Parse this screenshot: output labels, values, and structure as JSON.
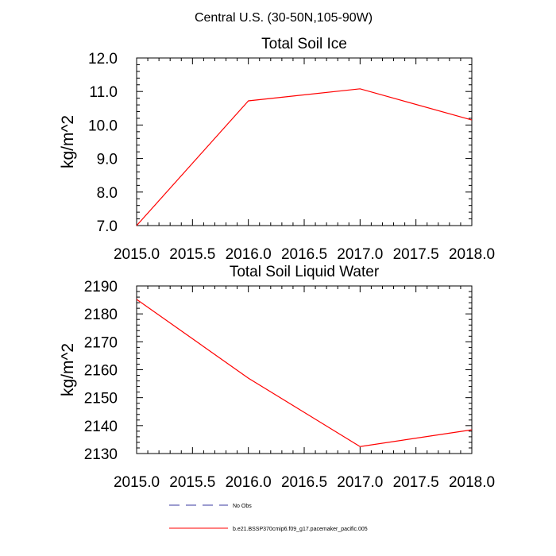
{
  "figure": {
    "title": "Central U.S. (30-50N,105-90W)"
  },
  "chart_data": [
    {
      "type": "line",
      "title": "Total Soil Ice",
      "xlabel": "",
      "ylabel": "kg/m^2",
      "xlim": [
        2015.0,
        2018.0
      ],
      "ylim": [
        7.0,
        12.0
      ],
      "xticks": [
        "2015.0",
        "2015.5",
        "2016.0",
        "2016.5",
        "2017.0",
        "2017.5",
        "2018.0"
      ],
      "yticks": [
        "7.0",
        "8.0",
        "9.0",
        "10.0",
        "11.0",
        "12.0"
      ],
      "grid": false,
      "series": [
        {
          "name": "b.e21.BSSP370cmip6.f09_g17.pacemaker_pacific.005",
          "color": "#ff0000",
          "x": [
            2015.0,
            2016.0,
            2017.0,
            2018.0
          ],
          "y": [
            7.0,
            10.72,
            11.08,
            10.15
          ]
        }
      ]
    },
    {
      "type": "line",
      "title": "Total Soil Liquid Water",
      "xlabel": "",
      "ylabel": "kg/m^2",
      "xlim": [
        2015.0,
        2018.0
      ],
      "ylim": [
        2130,
        2190
      ],
      "xticks": [
        "2015.0",
        "2015.5",
        "2016.0",
        "2016.5",
        "2017.0",
        "2017.5",
        "2018.0"
      ],
      "yticks": [
        "2130",
        "2140",
        "2150",
        "2160",
        "2170",
        "2180",
        "2190"
      ],
      "grid": false,
      "series": [
        {
          "name": "b.e21.BSSP370cmip6.f09_g17.pacemaker_pacific.005",
          "color": "#ff0000",
          "x": [
            2015.0,
            2016.0,
            2017.0,
            2018.0
          ],
          "y": [
            2185.2,
            2157.0,
            2132.5,
            2138.5
          ]
        }
      ]
    }
  ],
  "legend": {
    "placement": "bottom",
    "items": [
      {
        "label": "No Obs",
        "color": "#3a3aa0",
        "style": "dashed"
      },
      {
        "label": "b.e21.BSSP370cmip6.f09_g17.pacemaker_pacific.005",
        "color": "#ff0000",
        "style": "solid"
      }
    ]
  }
}
